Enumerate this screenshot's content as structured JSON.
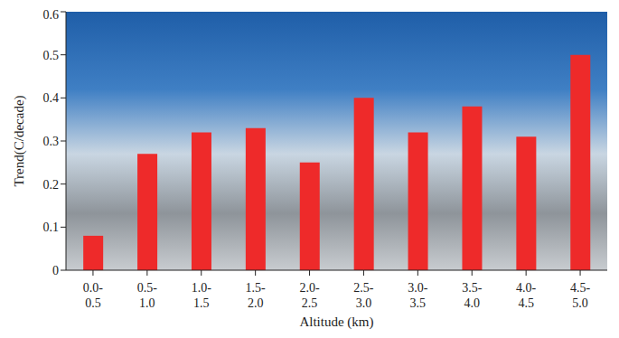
{
  "chart_data": {
    "type": "bar",
    "x_label": "Altitude (km)",
    "y_label": "Trend(C/decade)",
    "categories": [
      "0.0-0.5",
      "0.5-1.0",
      "1.0-1.5",
      "1.5-2.0",
      "2.0-2.5",
      "2.5-3.0",
      "3.0-3.5",
      "3.5-4.0",
      "4.0-4.5",
      "4.5-5.0"
    ],
    "values": [
      0.08,
      0.27,
      0.32,
      0.33,
      0.25,
      0.4,
      0.32,
      0.38,
      0.31,
      0.5
    ],
    "color": "#ee2a2a",
    "ylim": [
      0,
      0.6
    ],
    "yticks": [
      0,
      0.1,
      0.2,
      0.3,
      0.4,
      0.5,
      0.6
    ],
    "grid": false
  }
}
